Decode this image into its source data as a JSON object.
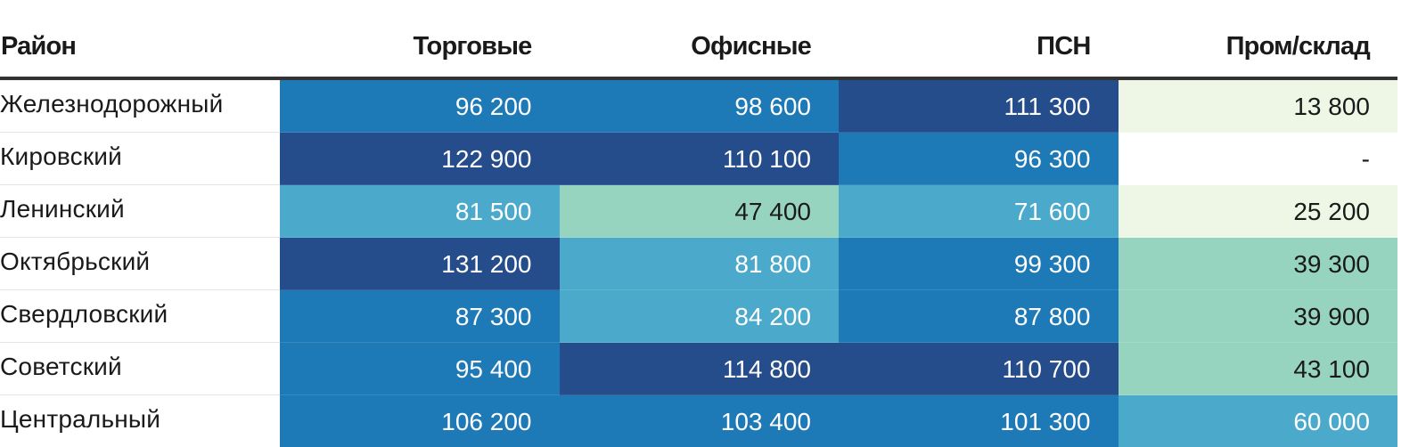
{
  "chart_data": {
    "type": "table",
    "columns": [
      "Район",
      "Торговые",
      "Офисные",
      "ПСН",
      "Пром/склад"
    ],
    "rows": [
      {
        "district": "Железнодорожный",
        "values": [
          "96 200",
          "98 600",
          "111 300",
          "13 800"
        ],
        "numeric": [
          96200,
          98600,
          111300,
          13800
        ]
      },
      {
        "district": "Кировский",
        "values": [
          "122 900",
          "110 100",
          "96 300",
          "-"
        ],
        "numeric": [
          122900,
          110100,
          96300,
          null
        ]
      },
      {
        "district": "Ленинский",
        "values": [
          "81 500",
          "47 400",
          "71 600",
          "25 200"
        ],
        "numeric": [
          81500,
          47400,
          71600,
          25200
        ]
      },
      {
        "district": "Октябрьский",
        "values": [
          "131 200",
          "81 800",
          "99 300",
          "39 300"
        ],
        "numeric": [
          131200,
          81800,
          99300,
          39300
        ]
      },
      {
        "district": "Свердловский",
        "values": [
          "87 300",
          "84 200",
          "87 800",
          "39 900"
        ],
        "numeric": [
          87300,
          84200,
          87800,
          39900
        ]
      },
      {
        "district": "Советский",
        "values": [
          "95 400",
          "114 800",
          "110 700",
          "43 100"
        ],
        "numeric": [
          95400,
          114800,
          110700,
          43100
        ]
      },
      {
        "district": "Центральный",
        "values": [
          "106 200",
          "103 400",
          "101 300",
          "60 000"
        ],
        "numeric": [
          106200,
          103400,
          101300,
          60000
        ]
      }
    ],
    "color_scale": [
      {
        "min": 0,
        "max": 30000,
        "color": "#eef7e6",
        "text_color": "#1a1a1a"
      },
      {
        "min": 30000,
        "max": 60000,
        "color": "#97d4c0",
        "text_color": "#1a1a1a"
      },
      {
        "min": 60000,
        "max": 85000,
        "color": "#4ba9cb",
        "text_color": "#ffffff"
      },
      {
        "min": 85000,
        "max": 110000,
        "color": "#1e79b7",
        "text_color": "#ffffff"
      },
      {
        "min": 110000,
        "max": 1000000,
        "color": "#254c8b",
        "text_color": "#ffffff"
      }
    ],
    "missing_color": "#ffffff",
    "missing_text_color": "#1a1a1a"
  }
}
